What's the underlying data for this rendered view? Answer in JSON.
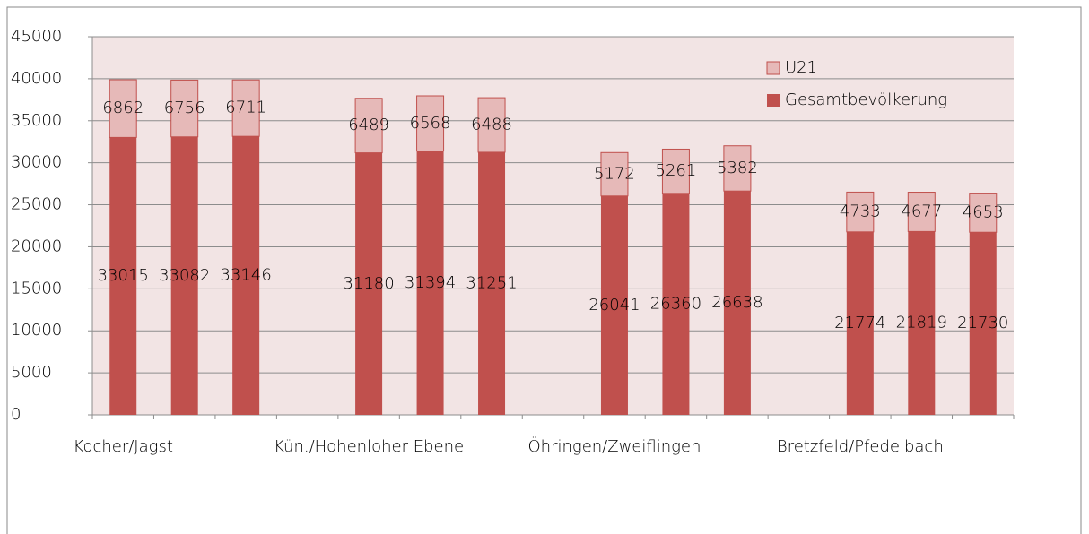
{
  "chart_data": {
    "type": "stacked-bar",
    "categories": [
      "Kocher/Jagst",
      null,
      null,
      null,
      "Kün./Hohenloher Ebene",
      null,
      null,
      null,
      "Öhringen/Zweiflingen",
      null,
      null,
      null,
      "Bretzfeld/Pfedelbach",
      null,
      null
    ],
    "series": [
      {
        "name": "Gesamtbevölkerung",
        "color": "#c0504d",
        "values": [
          33015,
          33082,
          33146,
          null,
          31180,
          31394,
          31251,
          null,
          26041,
          26360,
          26638,
          null,
          21774,
          21819,
          21730
        ]
      },
      {
        "name": "U21",
        "color": "#e6b9b8",
        "values": [
          6862,
          6756,
          6711,
          null,
          6489,
          6568,
          6488,
          null,
          5172,
          5261,
          5382,
          null,
          4733,
          4677,
          4653
        ]
      }
    ],
    "ylim": [
      0,
      45000
    ],
    "yticks": [
      0,
      5000,
      10000,
      15000,
      20000,
      25000,
      30000,
      35000,
      40000,
      45000
    ],
    "grid": true,
    "legend": "top-right"
  }
}
